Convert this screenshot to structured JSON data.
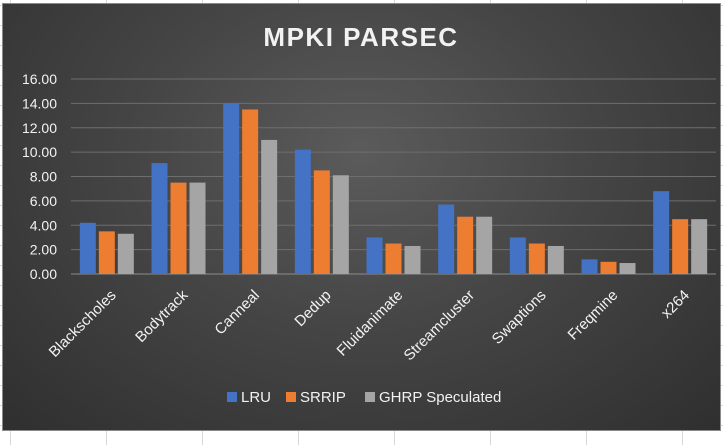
{
  "chart_data": {
    "type": "bar",
    "title": "MPKI PARSEC",
    "categories": [
      "Blackscholes",
      "Bodytrack",
      "Canneal",
      "Dedup",
      "Fluidanimate",
      "Streamcluster",
      "Swaptions",
      "Freqmine",
      "x264"
    ],
    "series": [
      {
        "name": "LRU",
        "color": "#4472C4",
        "values": [
          4.2,
          9.1,
          14.0,
          10.2,
          3.0,
          5.7,
          3.0,
          1.2,
          6.8
        ]
      },
      {
        "name": "SRRIP",
        "color": "#ED7D31",
        "values": [
          3.5,
          7.5,
          13.5,
          8.5,
          2.5,
          4.7,
          2.5,
          1.0,
          4.5
        ]
      },
      {
        "name": "GHRP Speculated",
        "color": "#A5A5A5",
        "values": [
          3.3,
          7.5,
          11.0,
          8.1,
          2.3,
          4.7,
          2.3,
          0.9,
          4.5
        ]
      }
    ],
    "ylim": [
      0,
      16
    ],
    "yticks": [
      "0.00",
      "2.00",
      "4.00",
      "6.00",
      "8.00",
      "10.00",
      "12.00",
      "14.00",
      "16.00"
    ],
    "xlabel": "",
    "ylabel": "",
    "grid": true,
    "legend_position": "bottom"
  }
}
